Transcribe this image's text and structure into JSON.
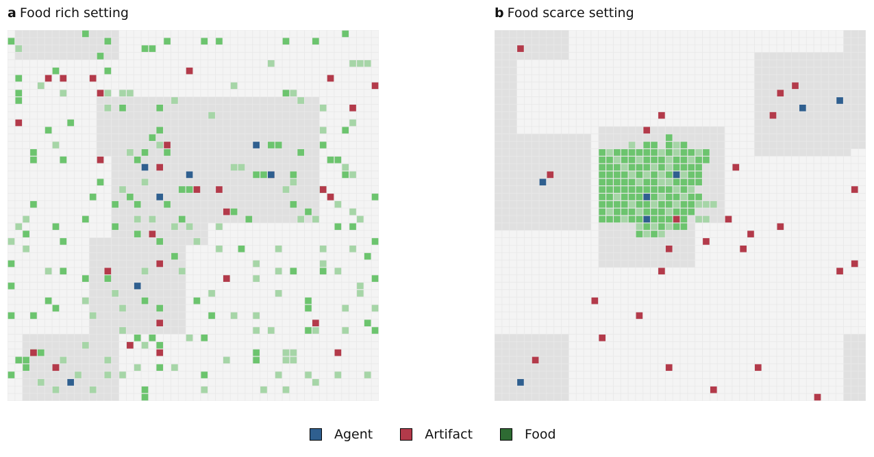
{
  "panels": [
    {
      "letter": "a",
      "title": "Food rich setting"
    },
    {
      "letter": "b",
      "title": "Food scarce setting"
    }
  ],
  "legend": [
    {
      "label": "Agent",
      "color": "#2f5f8f"
    },
    {
      "label": "Artifact",
      "color": "#b33a4a"
    },
    {
      "label": "Food",
      "color": "#2e6b33"
    }
  ],
  "colors": {
    "background": "#f4f4f4",
    "gridline": "#e8e8e8",
    "territory": "#e0e0e0",
    "food": "#6cc46e",
    "food_faded": "#a6d5a7",
    "agent": "#2f5f8f",
    "artifact": "#b33a4a"
  }
}
